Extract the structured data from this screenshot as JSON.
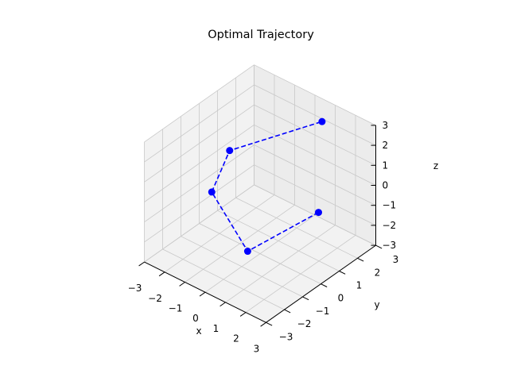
{
  "chart_data": {
    "type": "line3d",
    "title": "Optimal Trajectory",
    "xlabel": "x",
    "ylabel": "y",
    "zlabel": "z",
    "xlim": [
      -3,
      3
    ],
    "ylim": [
      -3,
      3
    ],
    "zlim": [
      -3,
      3
    ],
    "xticks": [
      "−3",
      "−2",
      "−1",
      "0",
      "1",
      "2",
      "3"
    ],
    "yticks": [
      "−3",
      "−2",
      "−1",
      "0",
      "1",
      "2",
      "3"
    ],
    "zticks": [
      "−3",
      "−2",
      "−1",
      "0",
      "1",
      "2",
      "3"
    ],
    "grid": true,
    "series": [
      {
        "line_style": "dashed",
        "marker": "circle",
        "color": "#0000ff",
        "points": [
          {
            "x": 1.8,
            "y": 1.2,
            "z": -0.8
          },
          {
            "x": 0.2,
            "y": -0.9,
            "z": -2.2
          },
          {
            "x": -1.3,
            "y": -1.2,
            "z": 0.2
          },
          {
            "x": -1.5,
            "y": 0.0,
            "z": 1.4
          },
          {
            "x": 0.8,
            "y": 2.5,
            "z": 2.4
          }
        ]
      }
    ]
  }
}
